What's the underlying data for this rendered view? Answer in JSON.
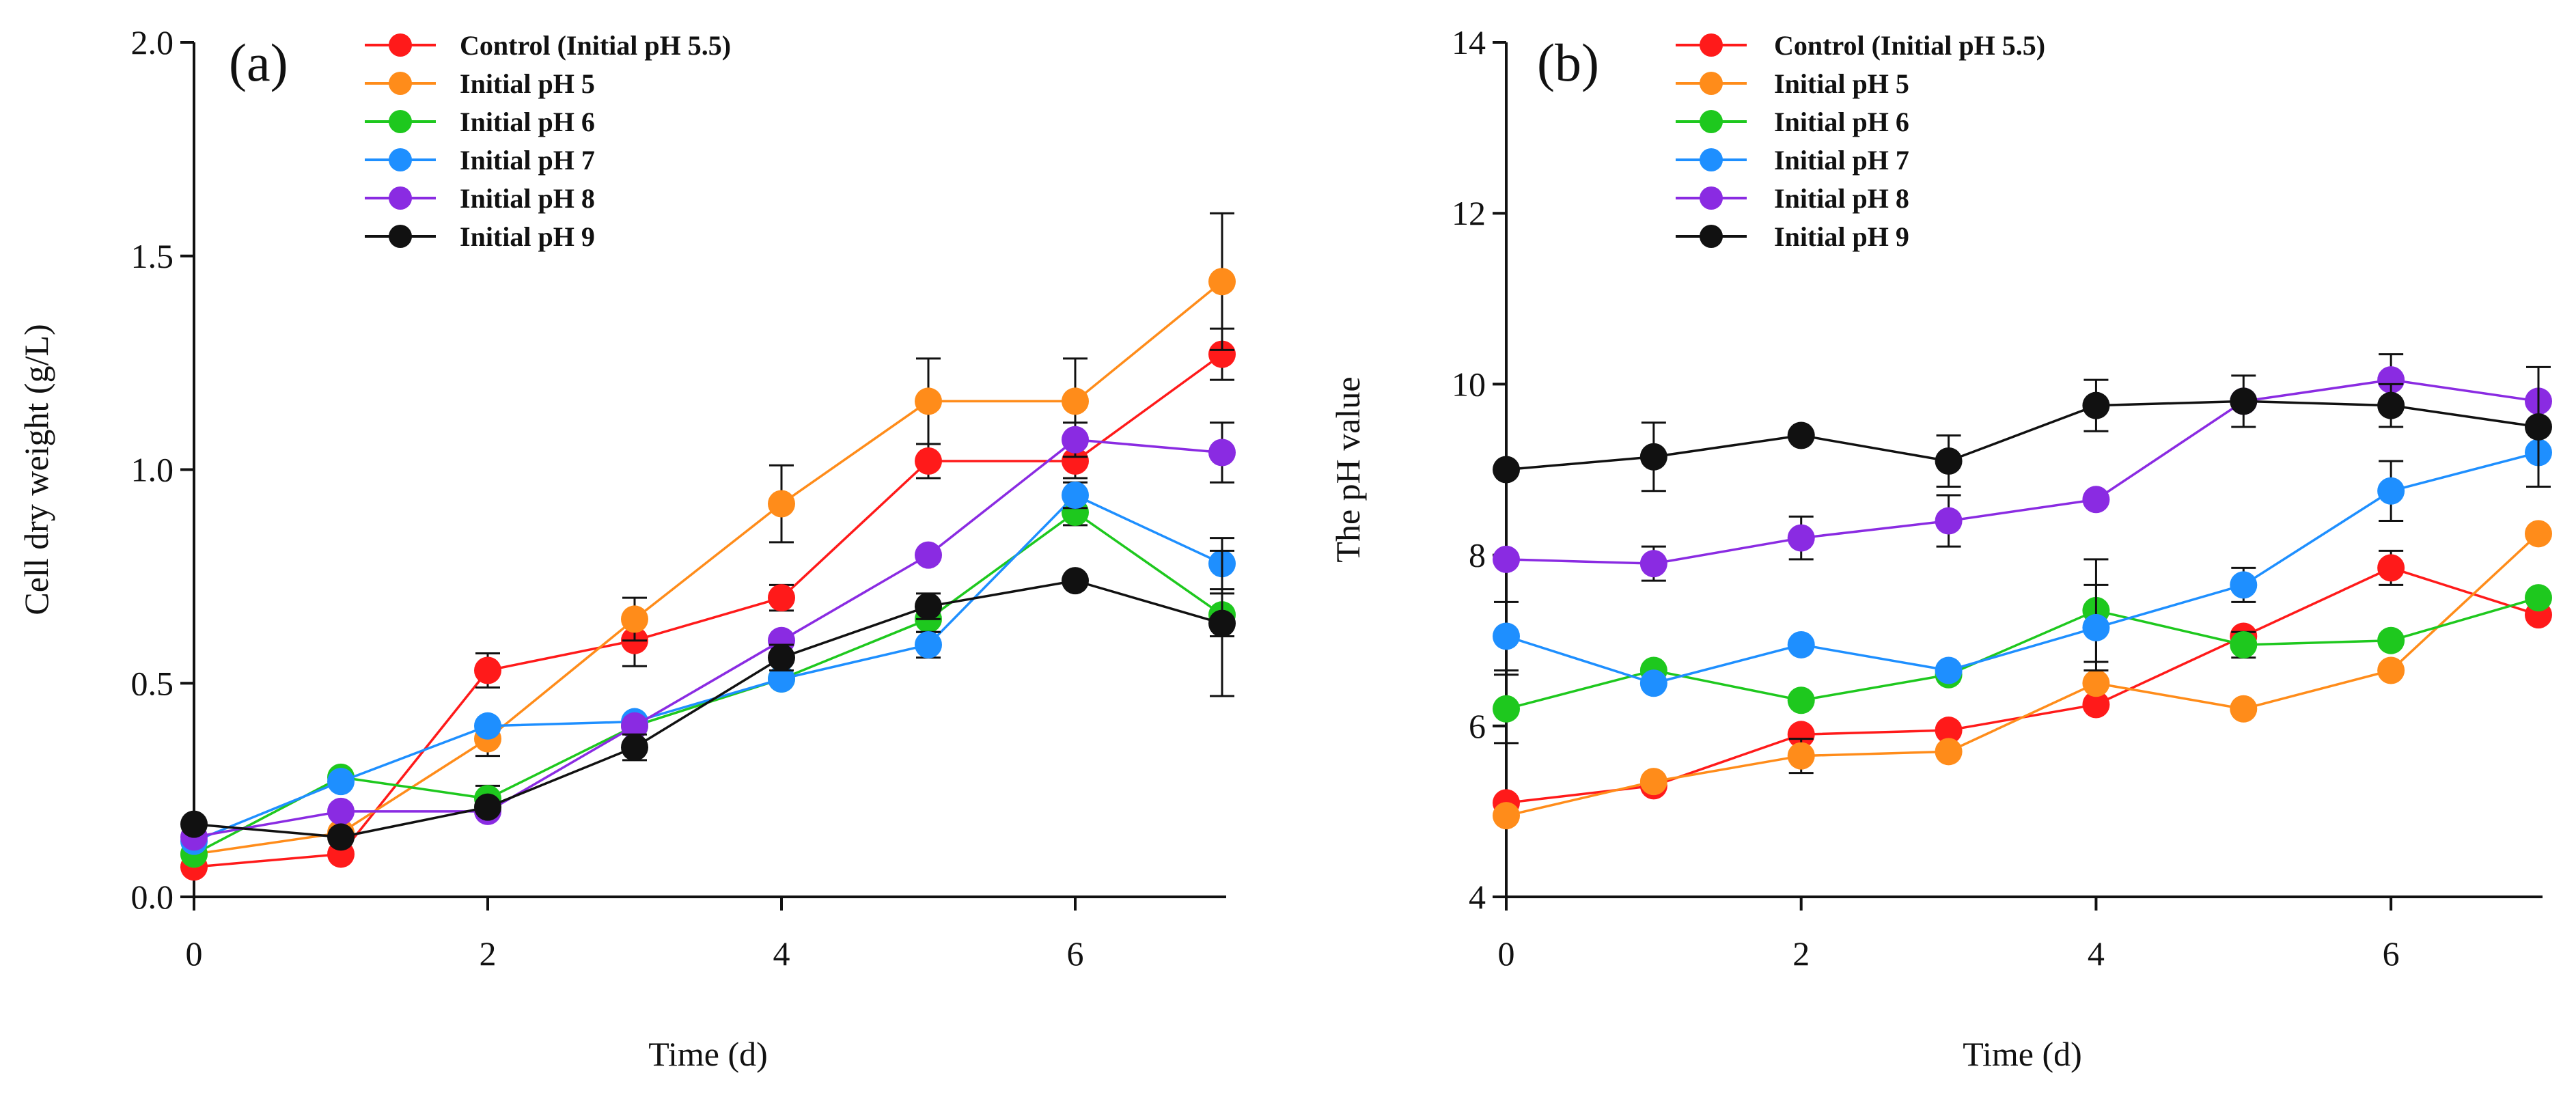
{
  "chart_data": [
    {
      "type": "line",
      "panel_label": "(a)",
      "title": "",
      "xlabel": "Time (d)",
      "ylabel": "Cell dry weight (g/L)",
      "xlim": [
        0,
        7
      ],
      "ylim": [
        0,
        2.0
      ],
      "xticks": [
        "0",
        "2",
        "4",
        "6"
      ],
      "xtick_values": [
        0,
        2,
        4,
        6
      ],
      "yticks": [
        "0.0",
        "0.5",
        "1.0",
        "1.5",
        "2.0"
      ],
      "ytick_values": [
        0,
        0.5,
        1.0,
        1.5,
        2.0
      ],
      "legend_position": "top-center",
      "x": [
        0,
        1,
        2,
        3,
        4,
        5,
        6,
        7
      ],
      "series": [
        {
          "name": "Control (Initial pH 5.5)",
          "color": "#ff1a1a",
          "values": [
            0.07,
            0.1,
            0.53,
            0.6,
            0.7,
            1.02,
            1.02,
            1.27
          ],
          "errors": [
            0.01,
            0.01,
            0.04,
            0.06,
            0.03,
            0.04,
            0.04,
            0.06
          ]
        },
        {
          "name": "Initial pH 5",
          "color": "#ff8c1a",
          "values": [
            0.1,
            0.15,
            0.37,
            0.65,
            0.92,
            1.16,
            1.16,
            1.44
          ],
          "errors": [
            0.01,
            0.01,
            0.04,
            0.05,
            0.09,
            0.1,
            0.1,
            0.16
          ]
        },
        {
          "name": "Initial pH 6",
          "color": "#1ec81e",
          "values": [
            0.1,
            0.28,
            0.23,
            0.4,
            0.51,
            0.65,
            0.9,
            0.66
          ],
          "errors": [
            0.01,
            0.01,
            0.03,
            0.02,
            0.02,
            0.03,
            0.03,
            0.05
          ]
        },
        {
          "name": "Initial pH 7",
          "color": "#1e8fff",
          "values": [
            0.13,
            0.27,
            0.4,
            0.41,
            0.51,
            0.59,
            0.94,
            0.78
          ],
          "errors": [
            0.01,
            0.01,
            0.02,
            0.02,
            0.02,
            0.03,
            0.03,
            0.06
          ]
        },
        {
          "name": "Initial pH 8",
          "color": "#8a2be2",
          "values": [
            0.14,
            0.2,
            0.2,
            0.4,
            0.6,
            0.8,
            1.07,
            1.04
          ],
          "errors": [
            0.01,
            0.01,
            0.01,
            0.02,
            0.02,
            0.02,
            0.04,
            0.07
          ]
        },
        {
          "name": "Initial pH 9",
          "color": "#111111",
          "values": [
            0.17,
            0.14,
            0.21,
            0.35,
            0.56,
            0.68,
            0.74,
            0.64
          ],
          "errors": [
            0.01,
            0.01,
            0.02,
            0.03,
            0.03,
            0.03,
            0.02,
            0.17
          ]
        }
      ]
    },
    {
      "type": "line",
      "panel_label": "(b)",
      "title": "",
      "xlabel": "Time (d)",
      "ylabel": "The pH value",
      "xlim": [
        0,
        7
      ],
      "ylim": [
        4,
        14
      ],
      "xticks": [
        "0",
        "2",
        "4",
        "6"
      ],
      "xtick_values": [
        0,
        2,
        4,
        6
      ],
      "yticks": [
        "4",
        "6",
        "8",
        "10",
        "12",
        "14"
      ],
      "ytick_values": [
        4,
        6,
        8,
        10,
        12,
        14
      ],
      "legend_position": "top-center",
      "x": [
        0,
        1,
        2,
        3,
        4,
        5,
        6,
        7
      ],
      "series": [
        {
          "name": "Control (Initial pH 5.5)",
          "color": "#ff1a1a",
          "values": [
            5.1,
            5.3,
            5.9,
            5.95,
            6.25,
            7.05,
            7.85,
            7.3
          ],
          "errors": [
            0.05,
            0.05,
            0.1,
            0.1,
            0.05,
            0.1,
            0.2,
            0.1
          ]
        },
        {
          "name": "Initial pH 5",
          "color": "#ff8c1a",
          "values": [
            4.95,
            5.35,
            5.65,
            5.7,
            6.5,
            6.2,
            6.65,
            8.25
          ],
          "errors": [
            0.05,
            0.05,
            0.2,
            0.1,
            0.1,
            0.05,
            0.05,
            0.05
          ]
        },
        {
          "name": "Initial pH 6",
          "color": "#1ec81e",
          "values": [
            6.2,
            6.65,
            6.3,
            6.6,
            7.35,
            6.95,
            7.0,
            7.5
          ],
          "errors": [
            0.4,
            0.05,
            0.1,
            0.05,
            0.6,
            0.15,
            0.05,
            0.05
          ]
        },
        {
          "name": "Initial pH 7",
          "color": "#1e8fff",
          "values": [
            7.05,
            6.5,
            6.95,
            6.65,
            7.15,
            7.65,
            8.75,
            9.2
          ],
          "errors": [
            0.4,
            0.1,
            0.1,
            0.05,
            0.5,
            0.2,
            0.35,
            0.1
          ]
        },
        {
          "name": "Initial pH 8",
          "color": "#8a2be2",
          "values": [
            7.95,
            7.9,
            8.2,
            8.4,
            8.65,
            9.8,
            10.05,
            9.8
          ],
          "errors": [
            0.05,
            0.2,
            0.25,
            0.3,
            0.05,
            0.1,
            0.3,
            0.1
          ]
        },
        {
          "name": "Initial pH 9",
          "color": "#111111",
          "values": [
            9.0,
            9.15,
            9.4,
            9.1,
            9.75,
            9.8,
            9.75,
            9.5
          ],
          "errors": [
            0.05,
            0.4,
            0.05,
            0.3,
            0.3,
            0.3,
            0.25,
            0.7
          ]
        }
      ]
    }
  ]
}
